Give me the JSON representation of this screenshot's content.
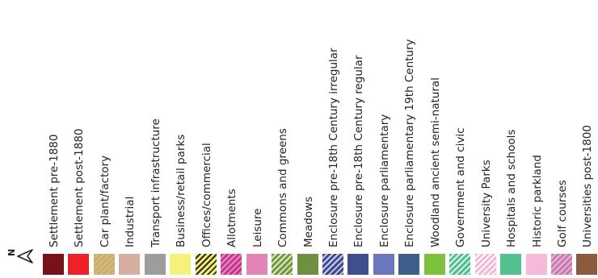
{
  "legend": {
    "north_arrow": {
      "letter": "N",
      "icon": "north-arrow-icon"
    },
    "items": [
      {
        "label": "Settlement  pre-1880",
        "color": "#7a1118",
        "pattern": "solid"
      },
      {
        "label": "Settlement  post-1880",
        "color": "#ee2126",
        "pattern": "solid"
      },
      {
        "label": "Car plant/factory",
        "color": "#c9a98a",
        "pattern": "hatch",
        "hatch_color": "#d6c35a"
      },
      {
        "label": "Industrial",
        "color": "#d7aea0",
        "pattern": "solid"
      },
      {
        "label": "Transport infrastructure",
        "color": "#9d9d9d",
        "pattern": "solid"
      },
      {
        "label": "Business/retail parks",
        "color": "#f5f27a",
        "pattern": "solid"
      },
      {
        "label": "Offices/commercial",
        "color": "#f2ec6e",
        "pattern": "hatch",
        "hatch_color": "#2a2a2a"
      },
      {
        "label": "Allotments",
        "color": "#c8358f",
        "pattern": "hatch",
        "hatch_color": "#e58ac0"
      },
      {
        "label": "Leisure",
        "color": "#e285b6",
        "pattern": "solid"
      },
      {
        "label": "Commons and greens",
        "color": "#72973e",
        "pattern": "hatch",
        "hatch_color": "#d9e8c5"
      },
      {
        "label": "Meadows",
        "color": "#6e9040",
        "pattern": "solid"
      },
      {
        "label": "Enclosure pre-18th Century irregular",
        "color": "#3e4a8e",
        "pattern": "hatch",
        "hatch_color": "#c8cde8"
      },
      {
        "label": "Enclosure pre-18th Century regular",
        "color": "#404d8f",
        "pattern": "solid"
      },
      {
        "label": "Enclosure parliamentary",
        "color": "#6a76bd",
        "pattern": "solid"
      },
      {
        "label": "Enclosure parliamentary 19th Century",
        "color": "#3f5f8a",
        "pattern": "solid"
      },
      {
        "label": "Woodland ancient semi-natural",
        "color": "#7cc23d",
        "pattern": "solid"
      },
      {
        "label": "Government and civic",
        "color": "#4fbe91",
        "pattern": "hatch",
        "hatch_color": "#dff3ea"
      },
      {
        "label": "University Parks",
        "color": "#f4b8d6",
        "pattern": "hatch",
        "hatch_color": "#ffffff"
      },
      {
        "label": "Hospitals and schools",
        "color": "#52c08f",
        "pattern": "solid"
      },
      {
        "label": "Historic parkland",
        "color": "#f4bad8",
        "pattern": "solid"
      },
      {
        "label": "Golf courses",
        "color": "#c97ab0",
        "pattern": "hatch",
        "hatch_color": "#e7b4d6"
      },
      {
        "label": "Universities post-1800",
        "color": "#8a5b3e",
        "pattern": "solid"
      }
    ]
  }
}
